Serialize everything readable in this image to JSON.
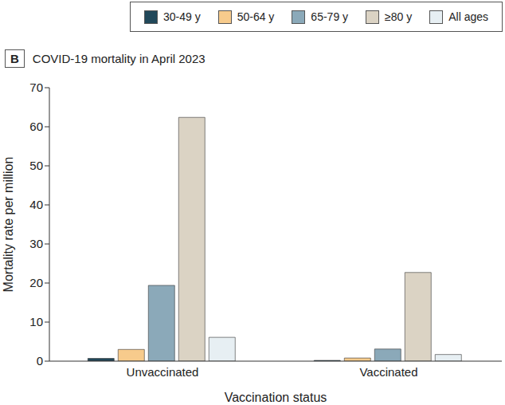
{
  "chart_data": {
    "type": "bar",
    "title": "COVID-19 mortality in April 2023",
    "annotations": [
      "B"
    ],
    "x_label": "Vaccination status",
    "y_label": "Mortality rate per million",
    "categories": [
      "Unvaccinated",
      "Vaccinated"
    ],
    "series": [
      {
        "name": "30-49 y",
        "color": "#21485a",
        "values": [
          0.7,
          0.2
        ]
      },
      {
        "name": "50-64 y",
        "color": "#f7cb8c",
        "values": [
          3.0,
          0.8
        ]
      },
      {
        "name": "65-79 y",
        "color": "#8ba9b9",
        "values": [
          19.4,
          3.1
        ]
      },
      {
        "name": "≥80 y",
        "color": "#dbd3c4",
        "values": [
          62.4,
          22.7
        ]
      },
      {
        "name": "All ages",
        "color": "#e7eff3",
        "values": [
          6.1,
          1.7
        ]
      }
    ],
    "ylim": [
      0,
      70
    ],
    "yticks": [
      0,
      10,
      20,
      30,
      40,
      50,
      60,
      70
    ],
    "grid": false,
    "legend": "top"
  }
}
